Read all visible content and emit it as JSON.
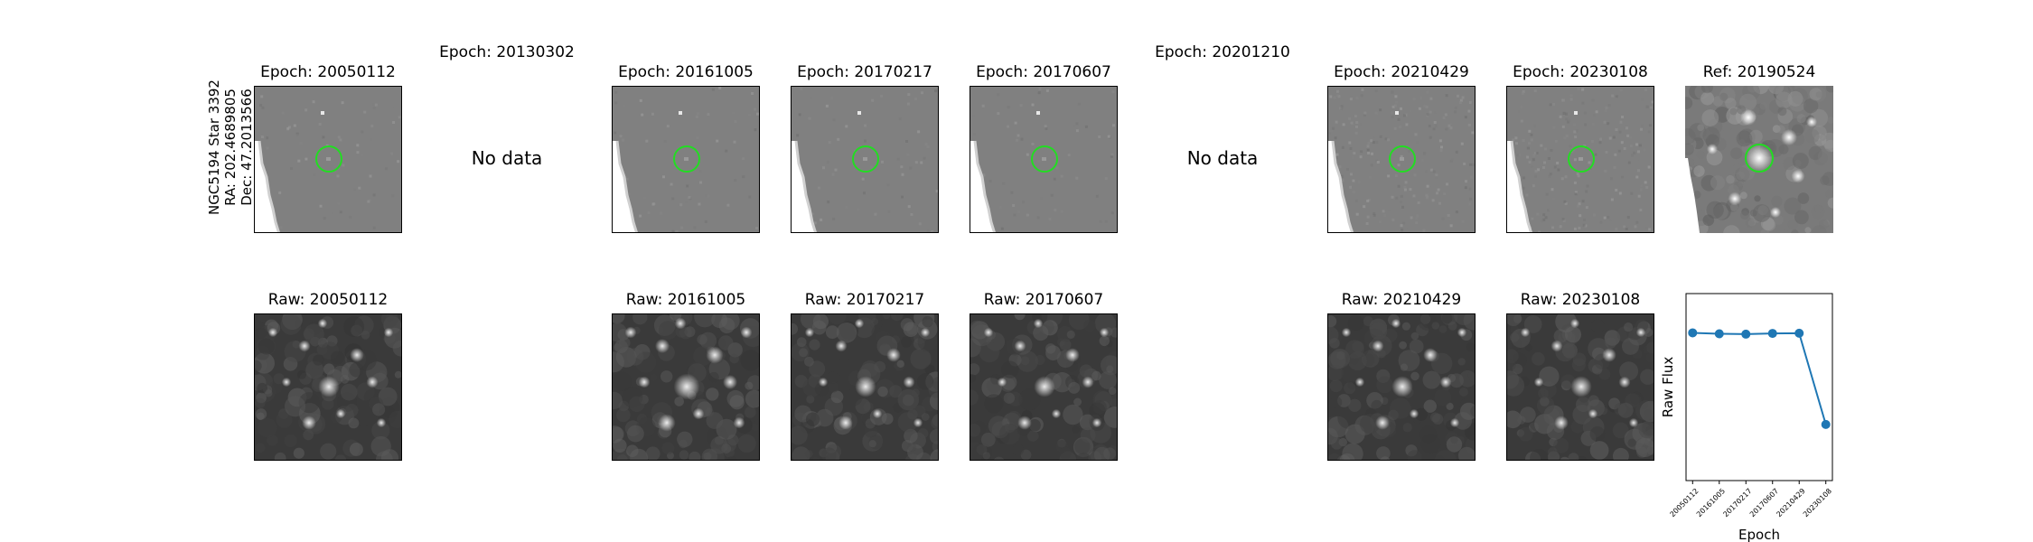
{
  "target": {
    "name": "NGC5194 Star 3392",
    "ra": "RA: 202.4689805",
    "dec": "Dec: 47.2013566"
  },
  "columns": [
    {
      "epoch_title": "Epoch: 20050112",
      "raw_title": "Raw: 20050112",
      "has_data": true
    },
    {
      "epoch_title": "Epoch: 20130302",
      "has_data": false,
      "no_data_text": "No data"
    },
    {
      "epoch_title": "Epoch: 20161005",
      "raw_title": "Raw: 20161005",
      "has_data": true
    },
    {
      "epoch_title": "Epoch: 20170217",
      "raw_title": "Raw: 20170217",
      "has_data": true
    },
    {
      "epoch_title": "Epoch: 20170607",
      "raw_title": "Raw: 20170607",
      "has_data": true
    },
    {
      "epoch_title": "Epoch: 20201210",
      "has_data": false,
      "no_data_text": "No data"
    },
    {
      "epoch_title": "Epoch: 20210429",
      "raw_title": "Raw: 20210429",
      "has_data": true
    },
    {
      "epoch_title": "Epoch: 20230108",
      "raw_title": "Raw: 20230108",
      "has_data": true
    }
  ],
  "reference": {
    "title": "Ref: 20190524"
  },
  "chart_data": {
    "type": "line",
    "categories": [
      "20050112",
      "20161005",
      "20170217",
      "20170607",
      "20210429",
      "20230108"
    ],
    "values": [
      0.79,
      0.785,
      0.783,
      0.787,
      0.788,
      0.3
    ],
    "ylim": [
      0,
      1
    ],
    "xlabel": "Epoch",
    "ylabel": "Raw Flux",
    "color": "#1f77b4"
  },
  "colors": {
    "marker_circle": "#22dd22",
    "diff_bg": "#808080",
    "raw_bg": "#3a3a3a"
  }
}
